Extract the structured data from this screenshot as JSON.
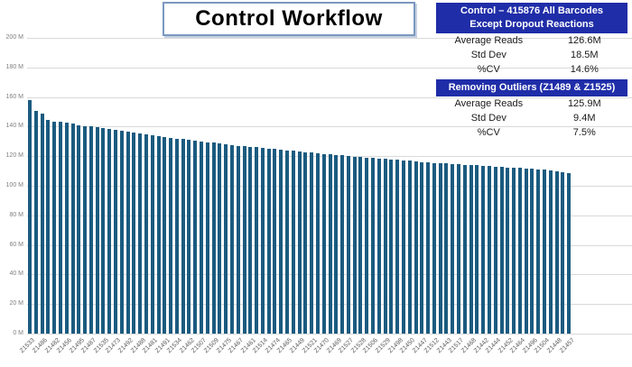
{
  "title": "Control Workflow",
  "colors": {
    "bar": "#1b5b80",
    "gridline": "#d9d9d9",
    "panel_header_bg": "#1f2da8",
    "panel_header_text": "#ffffff",
    "title_border": "#7a98c0",
    "axis_text": "#7f7f7f"
  },
  "stats_panels": [
    {
      "header_line1": "Control  – 415876 All Barcodes",
      "header_line2": "Except Dropout Reactions",
      "rows": [
        {
          "label": "Average Reads",
          "value": "126.6M"
        },
        {
          "label": "Std Dev",
          "value": "18.5M"
        },
        {
          "label": "%CV",
          "value": "14.6%"
        }
      ]
    },
    {
      "header_line1": "Removing Outliers (Z1489 & Z1525)",
      "rows": [
        {
          "label": "Average Reads",
          "value": "125.9M"
        },
        {
          "label": "Std Dev",
          "value": "9.4M"
        },
        {
          "label": "%CV",
          "value": "7.5%"
        }
      ]
    }
  ],
  "chart_data": {
    "type": "bar",
    "title": "Control Workflow",
    "xlabel": "",
    "ylabel": "",
    "ylim": [
      0,
      200
    ],
    "grid": true,
    "legend": false,
    "y_ticks": [
      {
        "value": 200,
        "label": "200 M"
      },
      {
        "value": 180,
        "label": "180 M"
      },
      {
        "value": 160,
        "label": "160 M"
      },
      {
        "value": 140,
        "label": "140 M"
      },
      {
        "value": 120,
        "label": "120 M"
      },
      {
        "value": 100,
        "label": "100 M"
      },
      {
        "value": 80,
        "label": "80 M"
      },
      {
        "value": 60,
        "label": "60 M"
      },
      {
        "value": 40,
        "label": "40 M"
      },
      {
        "value": 20,
        "label": "20 M"
      },
      {
        "value": 0,
        "label": "0 M"
      }
    ],
    "x_label_step": 2,
    "x_tick_labels": [
      "Z1533",
      "Z1486",
      "Z1482",
      "Z1456",
      "Z1495",
      "Z1487",
      "Z1535",
      "Z1473",
      "Z1492",
      "Z1488",
      "Z1481",
      "Z1491",
      "Z1534",
      "Z1462",
      "Z1507",
      "Z1509",
      "Z1475",
      "Z1467",
      "Z1461",
      "Z1514",
      "Z1474",
      "Z1465",
      "Z1449",
      "Z1521",
      "Z1470",
      "Z1469",
      "Z1527",
      "Z1528",
      "Z1506",
      "Z1529",
      "Z1498",
      "Z1450",
      "Z1447",
      "Z1512",
      "Z1443",
      "Z1517",
      "Z1468",
      "Z1442",
      "Z1444",
      "Z1452",
      "Z1464",
      "Z1496",
      "Z1504",
      "Z1448",
      "Z1457"
    ],
    "values_unit": "M reads",
    "values": [
      158,
      150.5,
      148.5,
      144.5,
      143.5,
      143,
      142.5,
      142,
      141,
      140.5,
      140,
      139.5,
      139,
      138.5,
      138,
      137,
      136.5,
      136,
      135.5,
      135,
      134,
      133.5,
      133,
      132.5,
      132,
      131.5,
      131,
      130.5,
      130,
      129.5,
      129,
      128.5,
      128,
      127.5,
      127,
      126.8,
      126.5,
      126,
      125.5,
      125.2,
      124.8,
      124.5,
      124,
      123.5,
      123.2,
      122.8,
      122.5,
      122,
      121.5,
      121.2,
      120.8,
      120.5,
      120,
      119.8,
      119.5,
      119,
      118.8,
      118.5,
      118,
      117.8,
      117.5,
      117,
      116.8,
      116.5,
      116,
      115.8,
      115.5,
      115.2,
      115,
      114.8,
      114.5,
      114.2,
      114,
      113.8,
      113.5,
      113.2,
      113,
      112.8,
      112.5,
      112.2,
      112,
      111.8,
      111.5,
      111.2,
      111,
      110.5,
      110,
      109,
      108.5
    ]
  }
}
